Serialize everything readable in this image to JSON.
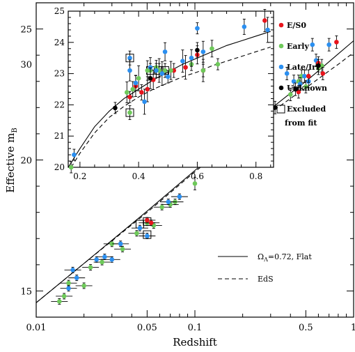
{
  "chart_data": [
    {
      "type": "scatter",
      "title": "",
      "xlabel": "Redshift",
      "ylabel_main": "Effective m",
      "ylabel_sub": "B",
      "xscale": "log",
      "xlim": [
        0.01,
        1.0
      ],
      "ylim": [
        14,
        26
      ],
      "xtick_labels": [
        "0.01",
        "0.05",
        "0.1",
        "0.5",
        "1"
      ],
      "ytick_labels": [
        "15",
        "20",
        "25",
        "30"
      ],
      "colors": {
        "E/S0": "#e8141c",
        "Early": "#6ec95a",
        "Late/Irr": "#2b8ff0",
        "Unknown": "#000000"
      },
      "series": [
        {
          "name": "Early",
          "points": [
            [
              0.014,
              14.6
            ],
            [
              0.015,
              14.8
            ],
            [
              0.016,
              15.3
            ],
            [
              0.02,
              15.2
            ],
            [
              0.022,
              15.9
            ],
            [
              0.026,
              16.1
            ],
            [
              0.03,
              16.8
            ],
            [
              0.035,
              16.6
            ],
            [
              0.043,
              17.2
            ],
            [
              0.05,
              17.6
            ],
            [
              0.055,
              17.5
            ],
            [
              0.062,
              18.2
            ],
            [
              0.07,
              18.3
            ],
            [
              0.075,
              18.4
            ],
            [
              0.1,
              19.1
            ],
            [
              0.18,
              20.2
            ],
            [
              0.4,
              22.5
            ],
            [
              0.45,
              23.0
            ],
            [
              0.47,
              23.2
            ],
            [
              0.5,
              22.8
            ],
            [
              0.6,
              23.5
            ],
            [
              0.63,
              23.6
            ]
          ]
        },
        {
          "name": "Late/Irr",
          "points": [
            [
              0.016,
              15.1
            ],
            [
              0.017,
              15.8
            ],
            [
              0.018,
              15.5
            ],
            [
              0.024,
              16.2
            ],
            [
              0.027,
              16.3
            ],
            [
              0.03,
              16.2
            ],
            [
              0.034,
              16.8
            ],
            [
              0.045,
              17.4
            ],
            [
              0.05,
              17.1
            ],
            [
              0.068,
              18.4
            ],
            [
              0.08,
              18.6
            ],
            [
              0.19,
              20.4
            ],
            [
              0.38,
              23.3
            ],
            [
              0.42,
              23.0
            ],
            [
              0.46,
              22.9
            ],
            [
              0.49,
              23.2
            ],
            [
              0.52,
              23.0
            ],
            [
              0.55,
              24.4
            ],
            [
              0.58,
              23.8
            ],
            [
              0.7,
              24.4
            ]
          ]
        },
        {
          "name": "E/S0",
          "points": [
            [
              0.05,
              17.7
            ],
            [
              0.053,
              17.6
            ],
            [
              0.45,
              22.6
            ],
            [
              0.52,
              23.2
            ],
            [
              0.6,
              23.7
            ],
            [
              0.64,
              23.3
            ],
            [
              0.78,
              24.5
            ]
          ]
        },
        {
          "name": "Unknown",
          "points": [
            [
              0.32,
              22.0
            ],
            [
              0.43,
              22.7
            ],
            [
              0.6,
              23.6
            ]
          ]
        }
      ],
      "excluded_points": [
        [
          0.045,
          17.55
        ],
        [
          0.05,
          17.65
        ],
        [
          0.05,
          17.15
        ]
      ],
      "curves": [
        {
          "name": "ΩΛ=0.72, Flat",
          "style": "solid",
          "points": [
            [
              0.01,
              14.55
            ],
            [
              0.02,
              16.05
            ],
            [
              0.05,
              18.05
            ],
            [
              0.1,
              19.6
            ],
            [
              0.2,
              21.1
            ],
            [
              0.3,
              21.95
            ],
            [
              0.4,
              22.55
            ],
            [
              0.5,
              23.0
            ],
            [
              0.6,
              23.4
            ],
            [
              0.7,
              23.75
            ],
            [
              0.8,
              24.05
            ],
            [
              1.0,
              24.55
            ]
          ]
        },
        {
          "name": "EdS",
          "style": "dashed",
          "points": [
            [
              0.01,
              14.55
            ],
            [
              0.02,
              16.05
            ],
            [
              0.05,
              18.0
            ],
            [
              0.1,
              19.55
            ],
            [
              0.2,
              21.0
            ],
            [
              0.3,
              21.8
            ],
            [
              0.4,
              22.35
            ],
            [
              0.5,
              22.75
            ],
            [
              0.6,
              23.1
            ],
            [
              0.7,
              23.4
            ],
            [
              0.8,
              23.65
            ],
            [
              1.0,
              24.1
            ]
          ]
        }
      ],
      "line_legend": [
        {
          "label_prefix": "Ω",
          "label_sub": "Λ",
          "label_rest": "=0.72, Flat",
          "style": "solid"
        },
        {
          "label_prefix": "EdS",
          "label_sub": "",
          "label_rest": "",
          "style": "dashed"
        }
      ]
    },
    {
      "type": "scatter",
      "title": "",
      "xlabel": "",
      "ylabel": "",
      "xscale": "linear",
      "xlim": [
        0.16,
        0.86
      ],
      "ylim": [
        20,
        25
      ],
      "xtick_labels": [
        "0.2",
        "0.4",
        "0.6",
        "0.8"
      ],
      "ytick_labels": [
        "20",
        "21",
        "22",
        "23",
        "24",
        "25"
      ],
      "legend": [
        {
          "label": "E/S0",
          "marker": "dot",
          "color": "#e8141c"
        },
        {
          "label": "Early",
          "marker": "dot",
          "color": "#6ec95a"
        },
        {
          "label": "Late/Irr",
          "marker": "dot",
          "color": "#2b8ff0"
        },
        {
          "label": "Unknown",
          "marker": "dot",
          "color": "#000000"
        },
        {
          "label": "Excluded",
          "label2": "from fit",
          "marker": "square",
          "color": "#000000"
        }
      ],
      "series": [
        {
          "name": "E/S0",
          "points": [
            [
              0.37,
              22.25
            ],
            [
              0.39,
              22.6
            ],
            [
              0.41,
              22.4
            ],
            [
              0.43,
              22.5
            ],
            [
              0.45,
              22.8
            ],
            [
              0.52,
              23.1
            ],
            [
              0.56,
              23.2
            ],
            [
              0.6,
              23.6
            ],
            [
              0.62,
              23.1
            ],
            [
              0.83,
              24.7
            ]
          ]
        },
        {
          "name": "Early",
          "points": [
            [
              0.17,
              20.0
            ],
            [
              0.36,
              22.4
            ],
            [
              0.38,
              22.5
            ],
            [
              0.4,
              22.85
            ],
            [
              0.43,
              23.1
            ],
            [
              0.46,
              23.2
            ],
            [
              0.47,
              23.1
            ],
            [
              0.51,
              23.1
            ],
            [
              0.58,
              23.3
            ],
            [
              0.62,
              23.1
            ],
            [
              0.65,
              23.8
            ],
            [
              0.67,
              23.3
            ]
          ]
        },
        {
          "name": "Late/Irr",
          "points": [
            [
              0.18,
              20.4
            ],
            [
              0.37,
              23.1
            ],
            [
              0.39,
              22.7
            ],
            [
              0.42,
              22.1
            ],
            [
              0.44,
              23.2
            ],
            [
              0.46,
              23.1
            ],
            [
              0.48,
              23.0
            ],
            [
              0.49,
              23.7
            ],
            [
              0.5,
              22.9
            ],
            [
              0.55,
              23.4
            ],
            [
              0.58,
              23.5
            ],
            [
              0.6,
              24.45
            ],
            [
              0.62,
              23.7
            ],
            [
              0.76,
              24.5
            ],
            [
              0.84,
              24.4
            ]
          ]
        },
        {
          "name": "Unknown",
          "points": [
            [
              0.32,
              21.9
            ],
            [
              0.44,
              22.85
            ],
            [
              0.6,
              23.75
            ]
          ]
        }
      ],
      "excluded_points": [
        [
          0.37,
          23.5,
          "#2b8ff0"
        ],
        [
          0.37,
          21.75,
          "#6ec95a"
        ],
        [
          0.44,
          23.1,
          "#6ec95a"
        ],
        [
          0.47,
          23.1,
          "#6ec95a"
        ],
        [
          0.49,
          23.1,
          "#6ec95a"
        ]
      ],
      "curves": [
        {
          "name": "ΩΛ=0.72, Flat",
          "style": "solid",
          "points": [
            [
              0.16,
              20.0
            ],
            [
              0.2,
              20.6
            ],
            [
              0.25,
              21.3
            ],
            [
              0.3,
              21.8
            ],
            [
              0.35,
              22.2
            ],
            [
              0.4,
              22.5
            ],
            [
              0.45,
              22.8
            ],
            [
              0.5,
              23.05
            ],
            [
              0.55,
              23.3
            ],
            [
              0.6,
              23.5
            ],
            [
              0.65,
              23.7
            ],
            [
              0.7,
              23.9
            ],
            [
              0.75,
              24.05
            ],
            [
              0.8,
              24.2
            ],
            [
              0.85,
              24.35
            ]
          ]
        },
        {
          "name": "EdS",
          "style": "dashed",
          "points": [
            [
              0.17,
              20.0
            ],
            [
              0.2,
              20.45
            ],
            [
              0.25,
              21.1
            ],
            [
              0.3,
              21.6
            ],
            [
              0.35,
              21.95
            ],
            [
              0.4,
              22.25
            ],
            [
              0.45,
              22.5
            ],
            [
              0.5,
              22.7
            ],
            [
              0.55,
              22.9
            ],
            [
              0.6,
              23.05
            ],
            [
              0.65,
              23.25
            ],
            [
              0.7,
              23.4
            ],
            [
              0.75,
              23.55
            ],
            [
              0.8,
              23.7
            ],
            [
              0.85,
              23.85
            ]
          ]
        }
      ]
    }
  ]
}
